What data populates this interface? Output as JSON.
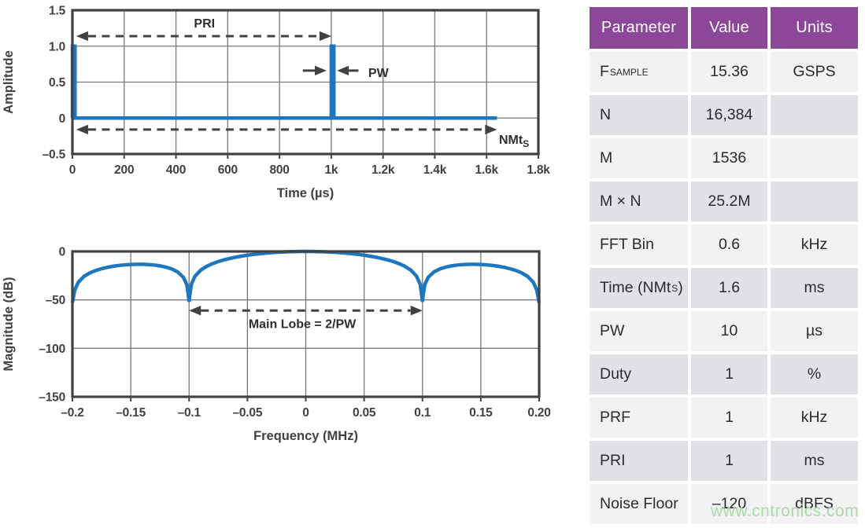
{
  "colors": {
    "accent_blue": "#1D76BE",
    "header_purple": "#8C4799",
    "frame_dark": "#414042",
    "grid_gray": "#77787B",
    "row_light": "#F2F2F4",
    "row_gray": "#E2E1E5",
    "watermark_green": "#A9DCA5"
  },
  "watermark": "www.cntronics.com",
  "table": {
    "headers": [
      "Parameter",
      "Value",
      "Units"
    ],
    "rows": [
      {
        "pre": "F",
        "sub": "SAMPLE",
        "post": "",
        "value": "15.36",
        "units": "GSPS"
      },
      {
        "pre": "N",
        "sub": "",
        "post": "",
        "value": "16,384",
        "units": ""
      },
      {
        "pre": "M",
        "sub": "",
        "post": "",
        "value": "1536",
        "units": ""
      },
      {
        "pre": "M × N",
        "sub": "",
        "post": "",
        "value": "25.2M",
        "units": ""
      },
      {
        "pre": "FFT Bin",
        "sub": "",
        "post": "",
        "value": "0.6",
        "units": "kHz"
      },
      {
        "pre": "Time (NMt",
        "sub": "S",
        "post": ")",
        "value": "1.6",
        "units": "ms"
      },
      {
        "pre": "PW",
        "sub": "",
        "post": "",
        "value": "10",
        "units": "µs"
      },
      {
        "pre": "Duty",
        "sub": "",
        "post": "",
        "value": "1",
        "units": "%"
      },
      {
        "pre": "PRF",
        "sub": "",
        "post": "",
        "value": "1",
        "units": "kHz"
      },
      {
        "pre": "PRI",
        "sub": "",
        "post": "",
        "value": "1",
        "units": "ms"
      },
      {
        "pre": "Noise Floor",
        "sub": "",
        "post": "",
        "value": "–120",
        "units": "dBFS"
      }
    ]
  },
  "chart_data": [
    {
      "type": "line",
      "title": "",
      "xlabel": "Time (µs)",
      "ylabel": "Amplitude",
      "xlim": [
        0,
        1800
      ],
      "ylim": [
        -0.5,
        1.5
      ],
      "grid": true,
      "xticks": {
        "values": [
          0,
          200,
          400,
          600,
          800,
          1000,
          1200,
          1400,
          1600,
          1800
        ],
        "labels": [
          "0",
          "200",
          "400",
          "600",
          "800",
          "1k",
          "1.2k",
          "1.4k",
          "1.6k",
          "1.8k"
        ]
      },
      "yticks": {
        "values": [
          -0.5,
          0,
          0.5,
          1.0,
          1.5
        ],
        "labels": [
          "–0.5",
          "0",
          "0.5",
          "1.0",
          "1.5"
        ]
      },
      "series": [
        {
          "name": "pulse-train",
          "points": [
            [
              0,
              0
            ],
            [
              0,
              1
            ],
            [
              10,
              1
            ],
            [
              10,
              0
            ],
            [
              1000,
              0
            ],
            [
              1000,
              1
            ],
            [
              1010,
              1
            ],
            [
              1010,
              0
            ],
            [
              1640,
              0
            ]
          ]
        }
      ],
      "annotations": [
        {
          "kind": "arrow",
          "x1": 15,
          "x2": 1000,
          "y": 1.14,
          "dashed": true,
          "heads": "both"
        },
        {
          "kind": "text",
          "x": 510,
          "y": 1.26,
          "text": "PRI",
          "anchor": "middle"
        },
        {
          "kind": "arrow",
          "x1": 890,
          "x2": 982,
          "y": 0.66,
          "dashed": false,
          "heads": "end"
        },
        {
          "kind": "arrow",
          "x1": 1105,
          "x2": 1022,
          "y": 0.66,
          "dashed": false,
          "heads": "end"
        },
        {
          "kind": "text",
          "x": 1143,
          "y": 0.57,
          "text": "PW",
          "anchor": "start"
        },
        {
          "kind": "arrow",
          "x1": 15,
          "x2": 1640,
          "y": -0.16,
          "dashed": true,
          "heads": "both"
        },
        {
          "kind": "text",
          "x": 1648,
          "y": -0.36,
          "text": "NMt",
          "sub": "S",
          "anchor": "start"
        }
      ]
    },
    {
      "type": "line",
      "title": "",
      "xlabel": "Frequency (MHz)",
      "ylabel": "Magnitude (dB)",
      "xlim": [
        -0.2,
        0.2
      ],
      "ylim": [
        -150,
        0
      ],
      "grid": true,
      "xticks": {
        "values": [
          -0.2,
          -0.15,
          -0.1,
          -0.05,
          0,
          0.05,
          0.1,
          0.15,
          0.2
        ],
        "labels": [
          "–0.2",
          "–0.15",
          "–0.1",
          "–0.05",
          "0",
          "0.05",
          "0.1",
          "0.15",
          "0.20"
        ]
      },
      "yticks": {
        "values": [
          0,
          -50,
          -100,
          -150
        ],
        "labels": [
          "0",
          "–50",
          "–100",
          "–150"
        ]
      },
      "series": [
        {
          "name": "sinc-spectrum",
          "points": [
            [
              -0.2,
              -53
            ],
            [
              -0.198,
              -39.9
            ],
            [
              -0.195,
              -31.86
            ],
            [
              -0.19,
              -25.72
            ],
            [
              -0.185,
              -22.15
            ],
            [
              -0.18,
              -19.66
            ],
            [
              -0.175,
              -17.82
            ],
            [
              -0.17,
              -16.39
            ],
            [
              -0.165,
              -15.3
            ],
            [
              -0.16,
              -14.46
            ],
            [
              -0.155,
              -13.86
            ],
            [
              -0.15,
              -13.46
            ],
            [
              -0.145,
              -13.28
            ],
            [
              -0.14,
              -13.3
            ],
            [
              -0.135,
              -13.55
            ],
            [
              -0.13,
              -14.06
            ],
            [
              -0.125,
              -14.89
            ],
            [
              -0.12,
              -16.14
            ],
            [
              -0.115,
              -18.02
            ],
            [
              -0.11,
              -20.97
            ],
            [
              -0.105,
              -26.5
            ],
            [
              -0.102,
              -34.2
            ],
            [
              -0.1005,
              -46
            ],
            [
              -0.1,
              -52
            ],
            [
              -0.0995,
              -46
            ],
            [
              -0.098,
              -33.8
            ],
            [
              -0.095,
              -25.61
            ],
            [
              -0.09,
              -19.23
            ],
            [
              -0.085,
              -15.39
            ],
            [
              -0.08,
              -12.62
            ],
            [
              -0.075,
              -10.46
            ],
            [
              -0.07,
              -8.69
            ],
            [
              -0.065,
              -7.2
            ],
            [
              -0.06,
              -5.94
            ],
            [
              -0.055,
              -4.86
            ],
            [
              -0.05,
              -3.92
            ],
            [
              -0.045,
              -3.12
            ],
            [
              -0.04,
              -2.42
            ],
            [
              -0.035,
              -1.83
            ],
            [
              -0.03,
              -1.33
            ],
            [
              -0.025,
              -0.91
            ],
            [
              -0.02,
              -0.58
            ],
            [
              -0.015,
              -0.32
            ],
            [
              -0.01,
              -0.14
            ],
            [
              -0.005,
              -0.04
            ],
            [
              0,
              0
            ],
            [
              0.005,
              -0.04
            ],
            [
              0.01,
              -0.14
            ],
            [
              0.015,
              -0.32
            ],
            [
              0.02,
              -0.58
            ],
            [
              0.025,
              -0.91
            ],
            [
              0.03,
              -1.33
            ],
            [
              0.035,
              -1.83
            ],
            [
              0.04,
              -2.42
            ],
            [
              0.045,
              -3.12
            ],
            [
              0.05,
              -3.92
            ],
            [
              0.055,
              -4.86
            ],
            [
              0.06,
              -5.94
            ],
            [
              0.065,
              -7.2
            ],
            [
              0.07,
              -8.69
            ],
            [
              0.075,
              -10.46
            ],
            [
              0.08,
              -12.62
            ],
            [
              0.085,
              -15.39
            ],
            [
              0.09,
              -19.23
            ],
            [
              0.095,
              -25.61
            ],
            [
              0.098,
              -33.8
            ],
            [
              0.0995,
              -46
            ],
            [
              0.1,
              -52
            ],
            [
              0.1005,
              -46
            ],
            [
              0.102,
              -34.2
            ],
            [
              0.105,
              -26.5
            ],
            [
              0.11,
              -20.97
            ],
            [
              0.115,
              -18.02
            ],
            [
              0.12,
              -16.14
            ],
            [
              0.125,
              -14.89
            ],
            [
              0.13,
              -14.06
            ],
            [
              0.135,
              -13.55
            ],
            [
              0.14,
              -13.3
            ],
            [
              0.145,
              -13.28
            ],
            [
              0.15,
              -13.46
            ],
            [
              0.155,
              -13.86
            ],
            [
              0.16,
              -14.46
            ],
            [
              0.165,
              -15.3
            ],
            [
              0.17,
              -16.39
            ],
            [
              0.175,
              -17.82
            ],
            [
              0.18,
              -19.66
            ],
            [
              0.185,
              -22.15
            ],
            [
              0.19,
              -25.72
            ],
            [
              0.195,
              -31.86
            ],
            [
              0.198,
              -39.9
            ],
            [
              0.2,
              -53
            ]
          ]
        }
      ],
      "annotations": [
        {
          "kind": "arrow",
          "x1": -0.1,
          "x2": 0.1,
          "y": -61,
          "dashed": true,
          "heads": "both"
        },
        {
          "kind": "text",
          "x": -0.003,
          "y": -79,
          "text": "Main Lobe = 2/PW",
          "anchor": "middle"
        }
      ]
    }
  ]
}
